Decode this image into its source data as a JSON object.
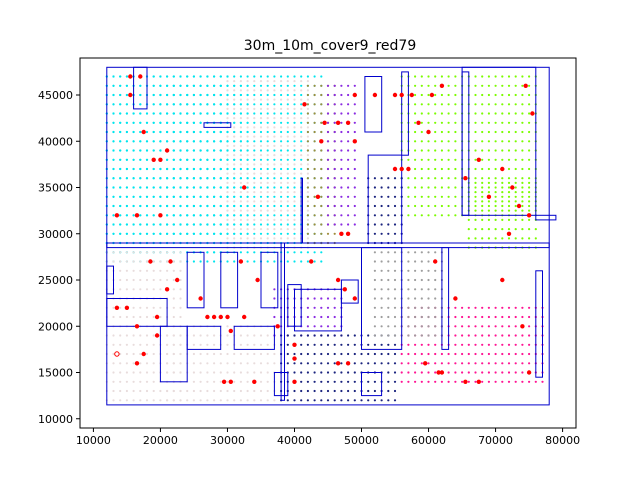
{
  "chart_data": {
    "type": "scatter",
    "title": "30m_10m_cover9_red79",
    "xlabel": "",
    "ylabel": "",
    "xlim": [
      8000,
      82000
    ],
    "ylim": [
      9000,
      49000
    ],
    "x_ticks": [
      10000,
      20000,
      30000,
      40000,
      50000,
      60000,
      70000,
      80000
    ],
    "y_ticks": [
      10000,
      15000,
      20000,
      25000,
      30000,
      35000,
      40000,
      45000
    ],
    "x_tick_labels": [
      "10000",
      "20000",
      "30000",
      "40000",
      "50000",
      "60000",
      "70000",
      "80000"
    ],
    "y_tick_labels": [
      "10000",
      "15000",
      "20000",
      "25000",
      "30000",
      "35000",
      "40000",
      "45000"
    ],
    "grid": false,
    "legend": false,
    "colors": {
      "walls": "#0000cc",
      "red_markers": "#ff0000",
      "cyan": "#00e5ee",
      "lime": "#7cfc00",
      "purple": "#8a2be2",
      "navy": "#1a237e",
      "pink": "#ff1493",
      "olive": "#a08c3c",
      "gray": "#9e9e9e",
      "faint": "#e8dcdc"
    },
    "coverage_series": [
      {
        "color_key": "cyan",
        "regions": [
          [
            12000,
            30000,
            28000,
            47000
          ],
          [
            12000,
            44000,
            27000,
            47000
          ],
          [
            20000,
            33000,
            30000,
            46000
          ]
        ]
      },
      {
        "color_key": "faint",
        "regions": [
          [
            30000,
            42000,
            28500,
            47000
          ],
          [
            12000,
            23000,
            12000,
            28000
          ],
          [
            21000,
            38000,
            12000,
            20000
          ]
        ]
      },
      {
        "color_key": "olive",
        "regions": [
          [
            42000,
            46000,
            29000,
            46500
          ]
        ]
      },
      {
        "color_key": "purple",
        "regions": [
          [
            45000,
            49000,
            31000,
            46000
          ],
          [
            37000,
            47000,
            19000,
            24500
          ]
        ]
      },
      {
        "color_key": "lime",
        "regions": [
          [
            56000,
            76000,
            32000,
            47000
          ],
          [
            66000,
            76000,
            28500,
            36000
          ]
        ]
      },
      {
        "color_key": "navy",
        "regions": [
          [
            38000,
            55000,
            12000,
            19000
          ],
          [
            51000,
            56000,
            29000,
            36000
          ]
        ]
      },
      {
        "color_key": "pink",
        "regions": [
          [
            56000,
            77000,
            14000,
            22000
          ]
        ]
      },
      {
        "color_key": "gray",
        "regions": [
          [
            52000,
            62000,
            19000,
            28000
          ]
        ]
      }
    ],
    "red_points": [
      [
        15500,
        47000
      ],
      [
        17000,
        47000
      ],
      [
        15500,
        45000
      ],
      [
        17500,
        41000
      ],
      [
        21000,
        39000
      ],
      [
        19000,
        38000
      ],
      [
        20000,
        38000
      ],
      [
        32500,
        35000
      ],
      [
        43500,
        34000
      ],
      [
        13500,
        32000
      ],
      [
        16500,
        32000
      ],
      [
        20000,
        32000
      ],
      [
        41500,
        44000
      ],
      [
        44500,
        42000
      ],
      [
        46500,
        42000
      ],
      [
        48000,
        42000
      ],
      [
        44000,
        40000
      ],
      [
        49000,
        40000
      ],
      [
        49000,
        45000
      ],
      [
        52000,
        45000
      ],
      [
        55000,
        45000
      ],
      [
        56000,
        45000
      ],
      [
        57500,
        45000
      ],
      [
        60500,
        45000
      ],
      [
        62000,
        46000
      ],
      [
        58500,
        42000
      ],
      [
        60000,
        41000
      ],
      [
        74500,
        46000
      ],
      [
        75500,
        43000
      ],
      [
        55000,
        37000
      ],
      [
        56000,
        37000
      ],
      [
        57000,
        37000
      ],
      [
        65500,
        36000
      ],
      [
        67500,
        38000
      ],
      [
        71000,
        37000
      ],
      [
        72500,
        35000
      ],
      [
        69000,
        34000
      ],
      [
        73500,
        33000
      ],
      [
        75000,
        32000
      ],
      [
        72000,
        30000
      ],
      [
        47000,
        30000
      ],
      [
        48000,
        30000
      ],
      [
        18500,
        27000
      ],
      [
        21500,
        27000
      ],
      [
        22500,
        25000
      ],
      [
        26000,
        23000
      ],
      [
        21000,
        24000
      ],
      [
        13500,
        22000
      ],
      [
        15000,
        22000
      ],
      [
        19500,
        21000
      ],
      [
        32000,
        27000
      ],
      [
        34500,
        25000
      ],
      [
        42500,
        27000
      ],
      [
        46500,
        25000
      ],
      [
        47500,
        24000
      ],
      [
        49000,
        23000
      ],
      [
        61000,
        27000
      ],
      [
        64000,
        23000
      ],
      [
        71000,
        25000
      ],
      [
        74000,
        20000
      ],
      [
        16500,
        20000
      ],
      [
        16500,
        16000
      ],
      [
        17500,
        17000
      ],
      [
        19500,
        19000
      ],
      [
        27000,
        21000
      ],
      [
        28000,
        21000
      ],
      [
        29000,
        21000
      ],
      [
        30000,
        21000
      ],
      [
        30500,
        19500
      ],
      [
        32500,
        21000
      ],
      [
        37500,
        20000
      ],
      [
        40000,
        18000
      ],
      [
        40000,
        16500
      ],
      [
        46500,
        16000
      ],
      [
        48000,
        16000
      ],
      [
        59500,
        16000
      ],
      [
        61500,
        15000
      ],
      [
        62000,
        15000
      ],
      [
        65500,
        14000
      ],
      [
        67500,
        14000
      ],
      [
        75000,
        15000
      ],
      [
        29500,
        14000
      ],
      [
        30500,
        14000
      ],
      [
        34000,
        14000
      ],
      [
        40000,
        14000
      ]
    ],
    "open_points": [
      [
        13500,
        17000
      ]
    ],
    "wall_rects": [
      [
        12000,
        11500,
        78000,
        48000
      ],
      [
        12000,
        28500,
        78000,
        29000
      ],
      [
        38000,
        12000,
        38500,
        29000
      ],
      [
        41000,
        29000,
        41200,
        36000
      ],
      [
        51000,
        29000,
        56000,
        38500
      ],
      [
        56000,
        38500,
        57000,
        47500
      ],
      [
        65000,
        32000,
        76000,
        48000
      ],
      [
        65000,
        32000,
        66000,
        47500
      ],
      [
        16000,
        43500,
        18000,
        48000
      ],
      [
        12000,
        20000,
        21000,
        23000
      ],
      [
        20000,
        14000,
        24000,
        20000
      ],
      [
        24000,
        17500,
        29000,
        20000
      ],
      [
        31000,
        17500,
        37000,
        20000
      ],
      [
        37000,
        12500,
        39000,
        15000
      ],
      [
        50000,
        12500,
        53000,
        15000
      ],
      [
        50500,
        41000,
        53000,
        47000
      ],
      [
        47000,
        22500,
        49500,
        25000
      ],
      [
        40000,
        19500,
        47000,
        24000
      ],
      [
        39000,
        20000,
        41000,
        24500
      ],
      [
        12000,
        23500,
        13000,
        26500
      ],
      [
        24000,
        22000,
        26500,
        28000
      ],
      [
        29000,
        22000,
        31500,
        28000
      ],
      [
        35000,
        22000,
        37500,
        28000
      ],
      [
        50000,
        17500,
        56000,
        28500
      ],
      [
        62000,
        17500,
        63000,
        28500
      ],
      [
        76000,
        14500,
        77000,
        26000
      ],
      [
        76000,
        31500,
        79000,
        32000
      ],
      [
        26500,
        41500,
        30500,
        42000
      ]
    ]
  }
}
